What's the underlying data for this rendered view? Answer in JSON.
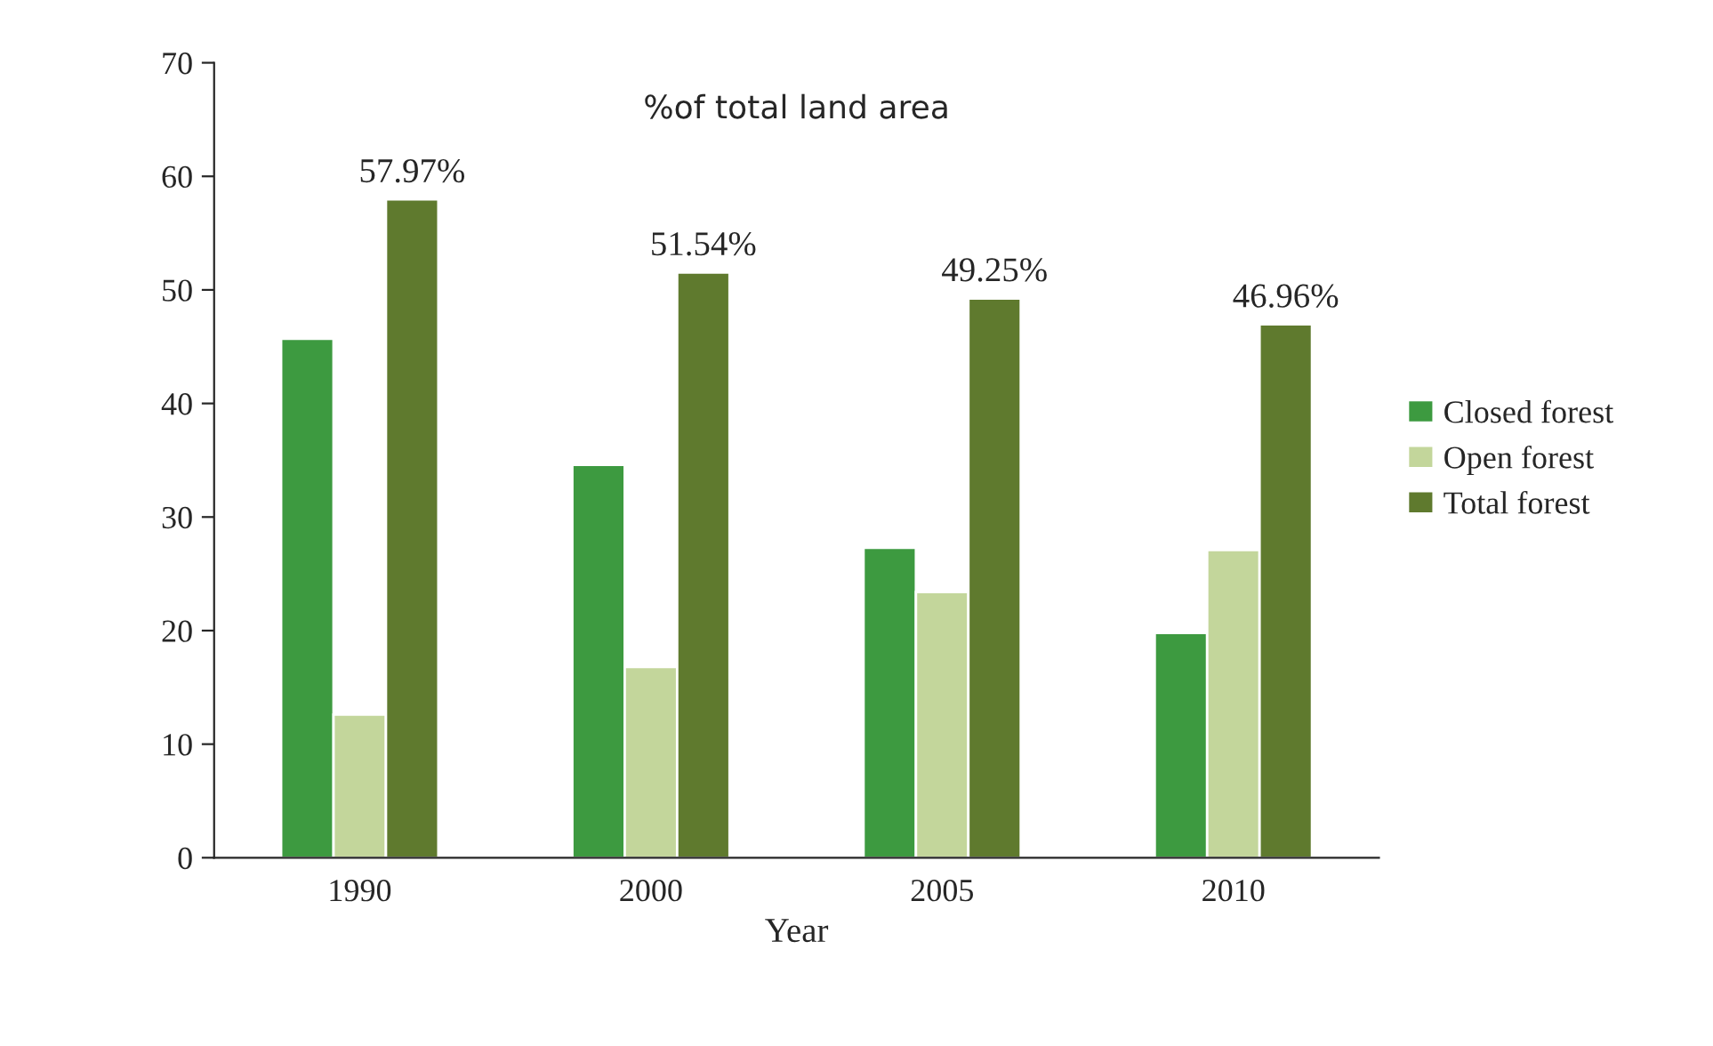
{
  "chart_data": {
    "type": "bar",
    "title": "%of total land area",
    "xlabel": "Year",
    "categories": [
      "1990",
      "2000",
      "2005",
      "2010"
    ],
    "series": [
      {
        "name": "Closed forest",
        "color": "#3d9a40",
        "values": [
          45.7,
          34.6,
          27.3,
          19.8
        ]
      },
      {
        "name": "Open forest",
        "color": "#c3d69b",
        "values": [
          12.6,
          16.8,
          23.4,
          27.1
        ]
      },
      {
        "name": "Total forest",
        "color": "#5f7a2e",
        "values": [
          57.97,
          51.54,
          49.25,
          46.96
        ],
        "value_labels": [
          "57.97%",
          "51.54%",
          "49.25%",
          "46.96%"
        ]
      }
    ],
    "ylim": [
      0,
      70
    ],
    "yticks": [
      0,
      10,
      20,
      30,
      40,
      50,
      60,
      70
    ],
    "grid": false,
    "legend": "right"
  }
}
